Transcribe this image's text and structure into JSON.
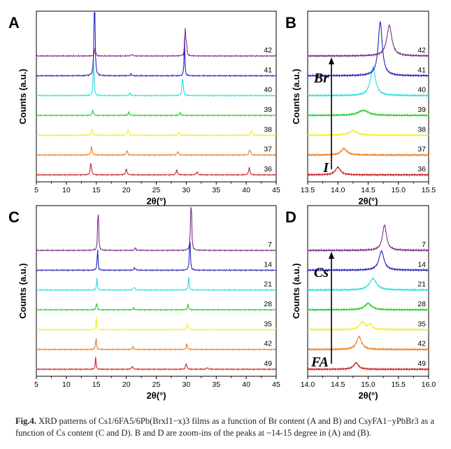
{
  "caption": {
    "label": "Fig.4.",
    "text": "XRD patterns of Cs1/6FA5/6Pb(BrxI1−x)3 films as a function of Br content (A and B) and CsyFA1−yPbBr3 as a function of Cs content (C and D). B and D are zoom-ins of the peaks at ~14-15 degree in (A) and (B)."
  },
  "colors": [
    "#cc2222",
    "#ee7a1a",
    "#f2ee22",
    "#22cc22",
    "#22e0e0",
    "#2222bb",
    "#7b2a8a"
  ],
  "chart_data": [
    {
      "id": "A",
      "type": "line",
      "panel_label": "A",
      "xlabel": "2θ(°)",
      "ylabel": "Counts (a.u.)",
      "xlim": [
        5,
        45
      ],
      "xticks": [
        "5",
        "10",
        "15",
        "20",
        "25",
        "30",
        "35",
        "40",
        "45"
      ],
      "series_labels": [
        "36",
        "37",
        "38",
        "39",
        "40",
        "41",
        "42"
      ],
      "series": [
        {
          "name": "36",
          "offset": 0,
          "peaks": [
            [
              14.1,
              2.2,
              0.1
            ],
            [
              20.0,
              1.0,
              0.12
            ],
            [
              28.4,
              0.8,
              0.12
            ],
            [
              31.8,
              0.5,
              0.12
            ],
            [
              40.5,
              1.2,
              0.12
            ]
          ]
        },
        {
          "name": "37",
          "offset": 1,
          "peaks": [
            [
              14.2,
              1.3,
              0.12
            ],
            [
              20.1,
              0.8,
              0.12
            ],
            [
              28.6,
              0.6,
              0.12
            ],
            [
              40.6,
              1.0,
              0.12
            ]
          ]
        },
        {
          "name": "38",
          "offset": 2,
          "peaks": [
            [
              14.3,
              1.0,
              0.12
            ],
            [
              20.3,
              1.0,
              0.12
            ],
            [
              28.8,
              0.5,
              0.12
            ],
            [
              40.9,
              0.8,
              0.12
            ]
          ]
        },
        {
          "name": "39",
          "offset": 3,
          "peaks": [
            [
              14.4,
              0.8,
              0.12
            ],
            [
              20.4,
              0.5,
              0.12
            ],
            [
              29.0,
              0.4,
              0.12
            ]
          ]
        },
        {
          "name": "40",
          "offset": 4,
          "peaks": [
            [
              14.55,
              6.0,
              0.08
            ],
            [
              29.4,
              3.5,
              0.09
            ],
            [
              20.6,
              0.4,
              0.12
            ]
          ]
        },
        {
          "name": "41",
          "offset": 5,
          "peaks": [
            [
              14.7,
              30.0,
              0.06
            ],
            [
              29.7,
              6.0,
              0.07
            ],
            [
              20.8,
              0.3,
              0.12
            ]
          ]
        },
        {
          "name": "42",
          "offset": 6,
          "peaks": [
            [
              14.8,
              1.5,
              0.08
            ],
            [
              29.8,
              4.5,
              0.07
            ],
            [
              30.0,
              3.0,
              0.07
            ],
            [
              20.9,
              0.3,
              0.12
            ]
          ]
        }
      ]
    },
    {
      "id": "B",
      "type": "line",
      "panel_label": "B",
      "xlabel": "2θ(°)",
      "ylabel": "Counts (a.u.)",
      "xlim": [
        13.5,
        15.5
      ],
      "xticks": [
        "13.5",
        "14.0",
        "14.5",
        "15.0",
        "15.5"
      ],
      "series_labels": [
        "36",
        "37",
        "38",
        "39",
        "40",
        "41",
        "42"
      ],
      "annotation_top": "Br",
      "annotation_bottom": "I",
      "series": [
        {
          "name": "36",
          "offset": 0,
          "peaks": [
            [
              14.0,
              1.2,
              0.05
            ]
          ]
        },
        {
          "name": "37",
          "offset": 1,
          "peaks": [
            [
              14.1,
              1.0,
              0.06
            ]
          ]
        },
        {
          "name": "38",
          "offset": 2,
          "peaks": [
            [
              14.25,
              0.7,
              0.08
            ]
          ]
        },
        {
          "name": "39",
          "offset": 3,
          "peaks": [
            [
              14.42,
              0.8,
              0.1
            ]
          ]
        },
        {
          "name": "40",
          "offset": 4,
          "peaks": [
            [
              14.58,
              4.5,
              0.05
            ]
          ]
        },
        {
          "name": "41",
          "offset": 5,
          "peaks": [
            [
              14.7,
              8.5,
              0.04
            ]
          ]
        },
        {
          "name": "42",
          "offset": 6,
          "peaks": [
            [
              14.85,
              4.8,
              0.05
            ]
          ]
        }
      ]
    },
    {
      "id": "C",
      "type": "line",
      "panel_label": "C",
      "xlabel": "2θ(°)",
      "ylabel": "Counts (a.u.)",
      "xlim": [
        5,
        45
      ],
      "xticks": [
        "5",
        "10",
        "15",
        "20",
        "25",
        "30",
        "35",
        "40",
        "45"
      ],
      "series_labels": [
        "49",
        "42",
        "35",
        "28",
        "21",
        "14",
        "7"
      ],
      "series": [
        {
          "name": "49",
          "offset": 0,
          "peaks": [
            [
              14.9,
              2.0,
              0.07
            ],
            [
              21.0,
              0.5,
              0.12
            ],
            [
              30.0,
              1.2,
              0.09
            ],
            [
              33.5,
              0.3,
              0.12
            ]
          ]
        },
        {
          "name": "42",
          "offset": 1,
          "peaks": [
            [
              14.95,
              2.5,
              0.07
            ],
            [
              21.1,
              0.4,
              0.12
            ],
            [
              30.1,
              1.0,
              0.09
            ]
          ]
        },
        {
          "name": "35",
          "offset": 2,
          "peaks": [
            [
              15.0,
              2.0,
              0.07
            ],
            [
              30.2,
              1.2,
              0.09
            ]
          ]
        },
        {
          "name": "28",
          "offset": 3,
          "peaks": [
            [
              15.05,
              1.5,
              0.07
            ],
            [
              30.3,
              1.0,
              0.09
            ],
            [
              21.2,
              0.3,
              0.12
            ]
          ]
        },
        {
          "name": "21",
          "offset": 4,
          "peaks": [
            [
              15.1,
              2.0,
              0.07
            ],
            [
              21.3,
              0.5,
              0.12
            ],
            [
              30.4,
              2.0,
              0.09
            ]
          ]
        },
        {
          "name": "14",
          "offset": 5,
          "peaks": [
            [
              15.2,
              4.0,
              0.07
            ],
            [
              21.4,
              0.4,
              0.12
            ],
            [
              30.6,
              6.0,
              0.08
            ]
          ]
        },
        {
          "name": "7",
          "offset": 6,
          "peaks": [
            [
              15.3,
              9.0,
              0.07
            ],
            [
              21.5,
              0.4,
              0.12
            ],
            [
              30.8,
              15.0,
              0.07
            ]
          ]
        }
      ]
    },
    {
      "id": "D",
      "type": "line",
      "panel_label": "D",
      "xlabel": "2θ(°)",
      "ylabel": "Counts (a.u.)",
      "xlim": [
        14.0,
        16.0
      ],
      "xticks": [
        "14.0",
        "14.5",
        "15.0",
        "15.5",
        "16.0"
      ],
      "series_labels": [
        "49",
        "42",
        "35",
        "28",
        "21",
        "14",
        "7"
      ],
      "annotation_top": "Cs",
      "annotation_bottom": "FA",
      "series": [
        {
          "name": "49",
          "offset": 0,
          "peaks": [
            [
              14.8,
              1.0,
              0.05
            ]
          ]
        },
        {
          "name": "42",
          "offset": 1,
          "peaks": [
            [
              14.85,
              2.0,
              0.05
            ]
          ]
        },
        {
          "name": "35",
          "offset": 2,
          "peaks": [
            [
              14.9,
              1.2,
              0.05
            ],
            [
              15.03,
              0.8,
              0.04
            ]
          ]
        },
        {
          "name": "28",
          "offset": 3,
          "peaks": [
            [
              15.0,
              1.0,
              0.07
            ]
          ]
        },
        {
          "name": "21",
          "offset": 4,
          "peaks": [
            [
              15.08,
              1.8,
              0.07
            ]
          ]
        },
        {
          "name": "14",
          "offset": 5,
          "peaks": [
            [
              15.22,
              3.0,
              0.05
            ]
          ]
        },
        {
          "name": "7",
          "offset": 6,
          "peaks": [
            [
              15.27,
              4.0,
              0.04
            ]
          ]
        }
      ]
    }
  ]
}
